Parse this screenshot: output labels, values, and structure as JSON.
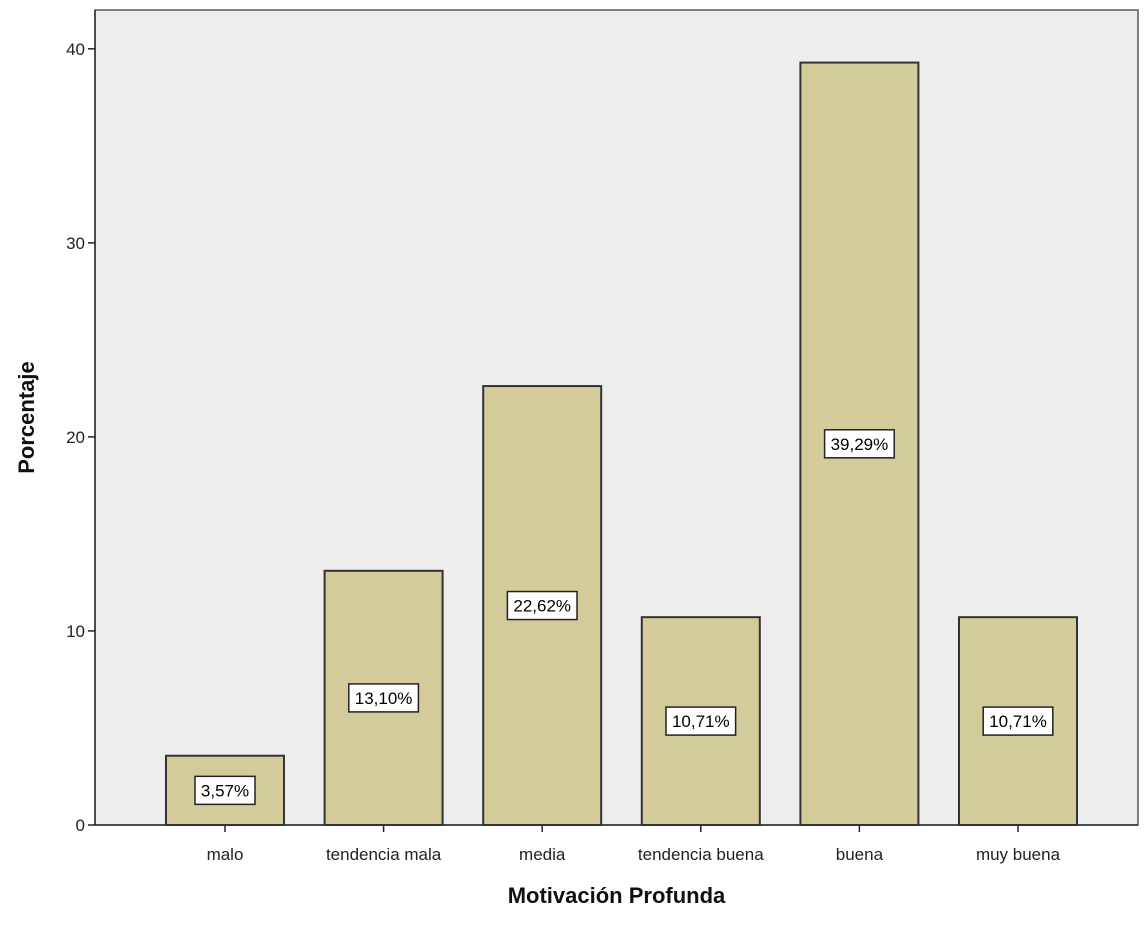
{
  "chart_data": {
    "type": "bar",
    "title": "",
    "xlabel": "Motivación Profunda",
    "ylabel": "Porcentaje",
    "categories": [
      "malo",
      "tendencia mala",
      "media",
      "tendencia buena",
      "buena",
      "muy buena"
    ],
    "values": [
      3.57,
      13.1,
      22.62,
      10.71,
      39.29,
      10.71
    ],
    "data_labels": [
      "3,57%",
      "13,10%",
      "22,62%",
      "10,71%",
      "39,29%",
      "10,71%"
    ],
    "yticks": [
      0,
      10,
      20,
      30,
      40
    ],
    "ytick_labels": [
      "0",
      "10",
      "20",
      "30",
      "40"
    ],
    "ylim": [
      0,
      42
    ],
    "grid": false,
    "legend": "none",
    "colors": {
      "plot_background": "#ededed",
      "bar_fill": "#d3cb99",
      "bar_stroke": "#333333",
      "label_box": "#ffffff"
    }
  }
}
